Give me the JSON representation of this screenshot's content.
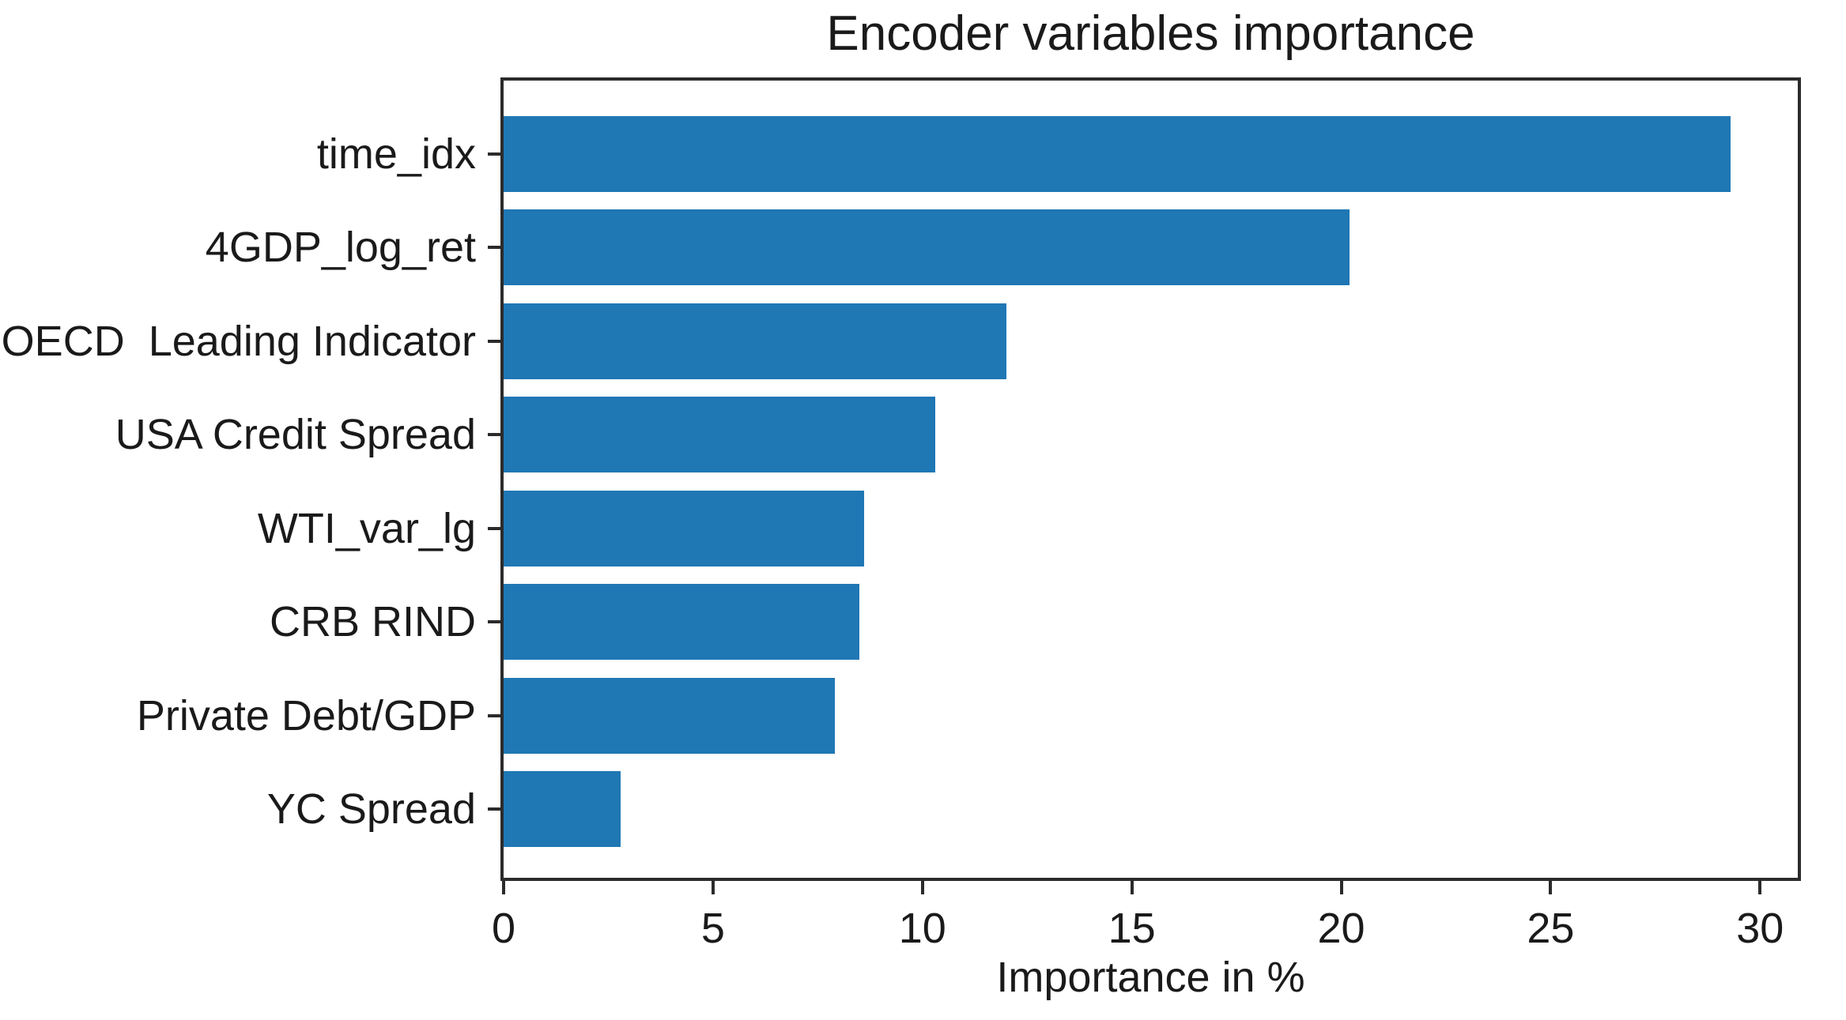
{
  "chart_data": {
    "type": "bar",
    "orientation": "horizontal",
    "title": "Encoder variables importance",
    "xlabel": "Importance in %",
    "ylabel": "",
    "categories": [
      "time_idx",
      "4GDP_log_ret",
      "OECD  Leading Indicator",
      "USA Credit Spread",
      "WTI_var_lg",
      "CRB RIND",
      "Private Debt/GDP",
      "YC Spread"
    ],
    "values": [
      29.3,
      20.2,
      12.0,
      10.3,
      8.6,
      8.5,
      7.9,
      2.8
    ],
    "xlim": [
      0,
      30.9
    ],
    "xticks": [
      0,
      5,
      10,
      15,
      20,
      25,
      30
    ],
    "grid": false,
    "legend": "none",
    "bar_color": "#1f77b4",
    "axis_color": "#2b2b2b",
    "text_color": "#1a1a1a",
    "background_color": "#ffffff"
  }
}
